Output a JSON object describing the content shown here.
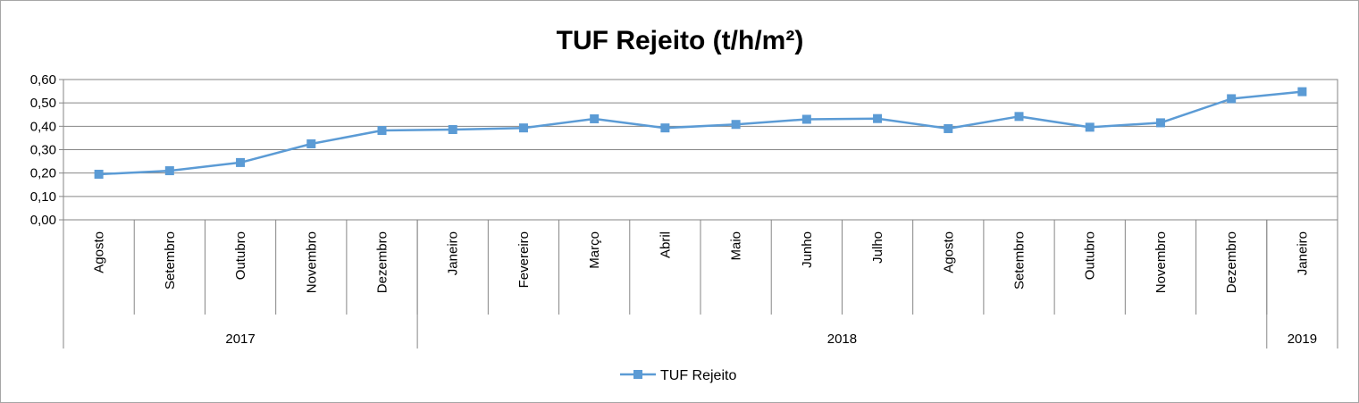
{
  "chart_data": {
    "type": "line",
    "title": "TUF Rejeito (t/h/m²)",
    "categories": [
      "Agosto",
      "Setembro",
      "Outubro",
      "Novembro",
      "Dezembro",
      "Janeiro",
      "Fevereiro",
      "Março",
      "Abril",
      "Maio",
      "Junho",
      "Julho",
      "Agosto",
      "Setembro",
      "Outubro",
      "Novembro",
      "Dezembro",
      "Janeiro"
    ],
    "year_groups": [
      {
        "label": "2017",
        "count": 5
      },
      {
        "label": "2018",
        "count": 12
      },
      {
        "label": "2019",
        "count": 1
      }
    ],
    "series": [
      {
        "name": "TUF Rejeito",
        "color": "#5b9bd5",
        "values": [
          0.195,
          0.21,
          0.245,
          0.325,
          0.382,
          0.386,
          0.393,
          0.432,
          0.393,
          0.408,
          0.43,
          0.433,
          0.39,
          0.442,
          0.396,
          0.415,
          0.518,
          0.548
        ]
      }
    ],
    "ylim": [
      0,
      0.6
    ],
    "yticks": [
      "0,00",
      "0,10",
      "0,20",
      "0,30",
      "0,40",
      "0,50",
      "0,60"
    ],
    "grid": true,
    "legend": "bottom-center"
  }
}
